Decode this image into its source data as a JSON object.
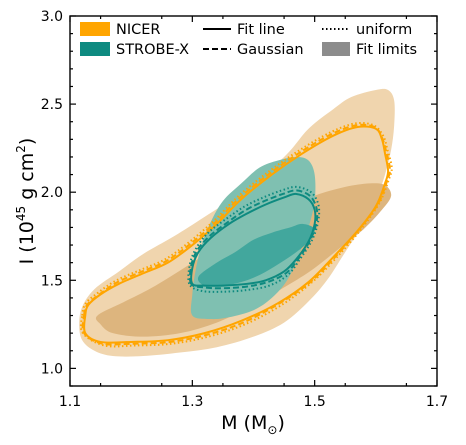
{
  "chart_data": {
    "type": "contour",
    "xlabel_main": "M (M",
    "xlabel_sub": "⊙",
    "xlabel_end": ")",
    "ylabel_main": "I (10",
    "ylabel_sup1": "45",
    "ylabel_mid": " g cm",
    "ylabel_sup2": "2",
    "ylabel_end": ")",
    "xlim": [
      1.1,
      1.7
    ],
    "ylim": [
      0.9,
      3.0
    ],
    "xticks": [
      {
        "value": 1.1,
        "label": "1.1"
      },
      {
        "value": 1.3,
        "label": "1.3"
      },
      {
        "value": 1.5,
        "label": "1.5"
      },
      {
        "value": 1.7,
        "label": "1.7"
      }
    ],
    "yticks": [
      {
        "value": 1.0,
        "label": "1.0"
      },
      {
        "value": 1.5,
        "label": "1.5"
      },
      {
        "value": 2.0,
        "label": "2.0"
      },
      {
        "value": 2.5,
        "label": "2.5"
      },
      {
        "value": 3.0,
        "label": "3.0"
      }
    ],
    "legend": [
      {
        "label": "NICER",
        "kind": "patch",
        "color": "#FFA500"
      },
      {
        "label": "STROBE-X",
        "kind": "patch",
        "color": "#0E8A80"
      },
      {
        "label": "Fit line",
        "kind": "line",
        "dash": "solid"
      },
      {
        "label": "Gaussian",
        "kind": "line",
        "dash": "dashed"
      },
      {
        "label": "uniform",
        "kind": "line",
        "dash": "dotted"
      },
      {
        "label": "Fit limits",
        "kind": "patch",
        "color": "#8c8c8c"
      }
    ],
    "colors": {
      "nicer_region": "#F0D5AE",
      "nicer_inner": "#DDB57E",
      "nicer_line": "#FFA500",
      "strobe_region": "#7FC0B1",
      "strobe_inner": "#42A79D",
      "strobe_line": "#0E8A80"
    },
    "regions": [
      {
        "name": "NICER outer region",
        "color": "#F0D5AE",
        "points": [
          [
            1.115,
            1.25
          ],
          [
            1.12,
            1.35
          ],
          [
            1.14,
            1.45
          ],
          [
            1.18,
            1.55
          ],
          [
            1.22,
            1.65
          ],
          [
            1.27,
            1.75
          ],
          [
            1.32,
            1.86
          ],
          [
            1.38,
            2.0
          ],
          [
            1.45,
            2.2
          ],
          [
            1.49,
            2.36
          ],
          [
            1.53,
            2.47
          ],
          [
            1.56,
            2.54
          ],
          [
            1.6,
            2.58
          ],
          [
            1.62,
            2.58
          ],
          [
            1.63,
            2.52
          ],
          [
            1.63,
            2.38
          ],
          [
            1.625,
            2.24
          ],
          [
            1.615,
            2.1
          ],
          [
            1.6,
            1.95
          ],
          [
            1.58,
            1.82
          ],
          [
            1.55,
            1.66
          ],
          [
            1.52,
            1.5
          ],
          [
            1.49,
            1.38
          ],
          [
            1.45,
            1.26
          ],
          [
            1.4,
            1.18
          ],
          [
            1.34,
            1.12
          ],
          [
            1.28,
            1.09
          ],
          [
            1.22,
            1.07
          ],
          [
            1.17,
            1.07
          ],
          [
            1.14,
            1.1
          ],
          [
            1.12,
            1.16
          ]
        ]
      },
      {
        "name": "NICER inner region",
        "color": "#DDB57E",
        "points": [
          [
            1.145,
            1.3
          ],
          [
            1.19,
            1.38
          ],
          [
            1.24,
            1.47
          ],
          [
            1.3,
            1.6
          ],
          [
            1.35,
            1.72
          ],
          [
            1.4,
            1.82
          ],
          [
            1.45,
            1.9
          ],
          [
            1.5,
            1.98
          ],
          [
            1.55,
            2.03
          ],
          [
            1.59,
            2.05
          ],
          [
            1.615,
            2.04
          ],
          [
            1.625,
            1.98
          ],
          [
            1.61,
            1.9
          ],
          [
            1.58,
            1.79
          ],
          [
            1.54,
            1.68
          ],
          [
            1.5,
            1.57
          ],
          [
            1.46,
            1.48
          ],
          [
            1.4,
            1.36
          ],
          [
            1.34,
            1.26
          ],
          [
            1.28,
            1.2
          ],
          [
            1.22,
            1.18
          ],
          [
            1.17,
            1.2
          ],
          [
            1.15,
            1.25
          ]
        ]
      },
      {
        "name": "STROBE-X outer region",
        "color": "#7FC0B1",
        "points": [
          [
            1.3,
            1.3
          ],
          [
            1.3,
            1.42
          ],
          [
            1.305,
            1.55
          ],
          [
            1.315,
            1.7
          ],
          [
            1.33,
            1.83
          ],
          [
            1.35,
            1.95
          ],
          [
            1.38,
            2.05
          ],
          [
            1.41,
            2.14
          ],
          [
            1.44,
            2.18
          ],
          [
            1.47,
            2.2
          ],
          [
            1.49,
            2.18
          ],
          [
            1.5,
            2.1
          ],
          [
            1.5,
            1.95
          ],
          [
            1.49,
            1.8
          ],
          [
            1.475,
            1.65
          ],
          [
            1.455,
            1.5
          ],
          [
            1.43,
            1.4
          ],
          [
            1.4,
            1.33
          ],
          [
            1.36,
            1.29
          ],
          [
            1.33,
            1.28
          ]
        ]
      },
      {
        "name": "STROBE-X inner region",
        "color": "#42A79D",
        "points": [
          [
            1.31,
            1.52
          ],
          [
            1.34,
            1.6
          ],
          [
            1.37,
            1.66
          ],
          [
            1.4,
            1.73
          ],
          [
            1.43,
            1.77
          ],
          [
            1.46,
            1.8
          ],
          [
            1.48,
            1.82
          ],
          [
            1.5,
            1.79
          ],
          [
            1.49,
            1.72
          ],
          [
            1.47,
            1.66
          ],
          [
            1.44,
            1.59
          ],
          [
            1.41,
            1.53
          ],
          [
            1.38,
            1.49
          ],
          [
            1.35,
            1.47
          ],
          [
            1.32,
            1.47
          ]
        ]
      }
    ],
    "fit_contours": [
      {
        "name": "NICER fit line",
        "color": "#FFA500",
        "dash": "solid",
        "points": [
          [
            1.125,
            1.3
          ],
          [
            1.13,
            1.36
          ],
          [
            1.15,
            1.42
          ],
          [
            1.18,
            1.48
          ],
          [
            1.22,
            1.54
          ],
          [
            1.26,
            1.6
          ],
          [
            1.3,
            1.7
          ],
          [
            1.34,
            1.82
          ],
          [
            1.38,
            1.96
          ],
          [
            1.43,
            2.1
          ],
          [
            1.48,
            2.22
          ],
          [
            1.53,
            2.32
          ],
          [
            1.57,
            2.37
          ],
          [
            1.6,
            2.36
          ],
          [
            1.61,
            2.3
          ],
          [
            1.615,
            2.22
          ],
          [
            1.62,
            2.12
          ],
          [
            1.615,
            2.05
          ],
          [
            1.6,
            1.92
          ],
          [
            1.57,
            1.78
          ],
          [
            1.53,
            1.63
          ],
          [
            1.49,
            1.49
          ],
          [
            1.44,
            1.37
          ],
          [
            1.38,
            1.27
          ],
          [
            1.32,
            1.2
          ],
          [
            1.26,
            1.16
          ],
          [
            1.2,
            1.15
          ],
          [
            1.15,
            1.15
          ],
          [
            1.125,
            1.2
          ]
        ]
      },
      {
        "name": "NICER Gaussian",
        "color": "#FFA500",
        "dash": "dashed",
        "points": [
          [
            1.123,
            1.3
          ],
          [
            1.128,
            1.36
          ],
          [
            1.148,
            1.42
          ],
          [
            1.178,
            1.49
          ],
          [
            1.218,
            1.55
          ],
          [
            1.258,
            1.61
          ],
          [
            1.298,
            1.71
          ],
          [
            1.338,
            1.83
          ],
          [
            1.378,
            1.97
          ],
          [
            1.428,
            2.11
          ],
          [
            1.478,
            2.23
          ],
          [
            1.528,
            2.33
          ],
          [
            1.568,
            2.38
          ],
          [
            1.598,
            2.37
          ],
          [
            1.61,
            2.31
          ],
          [
            1.617,
            2.23
          ],
          [
            1.623,
            2.13
          ],
          [
            1.618,
            2.06
          ],
          [
            1.603,
            1.93
          ],
          [
            1.573,
            1.79
          ],
          [
            1.533,
            1.63
          ],
          [
            1.493,
            1.49
          ],
          [
            1.443,
            1.37
          ],
          [
            1.383,
            1.26
          ],
          [
            1.323,
            1.19
          ],
          [
            1.263,
            1.15
          ],
          [
            1.203,
            1.14
          ],
          [
            1.153,
            1.14
          ],
          [
            1.123,
            1.2
          ]
        ]
      },
      {
        "name": "NICER uniform",
        "color": "#FFA500",
        "dash": "dotted",
        "points": [
          [
            1.12,
            1.3
          ],
          [
            1.126,
            1.37
          ],
          [
            1.146,
            1.43
          ],
          [
            1.176,
            1.5
          ],
          [
            1.216,
            1.56
          ],
          [
            1.256,
            1.62
          ],
          [
            1.296,
            1.72
          ],
          [
            1.336,
            1.84
          ],
          [
            1.376,
            1.98
          ],
          [
            1.426,
            2.12
          ],
          [
            1.476,
            2.24
          ],
          [
            1.526,
            2.34
          ],
          [
            1.566,
            2.39
          ],
          [
            1.596,
            2.38
          ],
          [
            1.612,
            2.32
          ],
          [
            1.619,
            2.24
          ],
          [
            1.626,
            2.14
          ],
          [
            1.621,
            2.07
          ],
          [
            1.606,
            1.94
          ],
          [
            1.576,
            1.79
          ],
          [
            1.536,
            1.63
          ],
          [
            1.496,
            1.49
          ],
          [
            1.446,
            1.36
          ],
          [
            1.386,
            1.25
          ],
          [
            1.326,
            1.18
          ],
          [
            1.266,
            1.14
          ],
          [
            1.206,
            1.13
          ],
          [
            1.156,
            1.13
          ],
          [
            1.121,
            1.2
          ]
        ]
      },
      {
        "name": "STROBE-X fit line",
        "color": "#0E8A80",
        "dash": "solid",
        "points": [
          [
            1.3,
            1.48
          ],
          [
            1.3,
            1.57
          ],
          [
            1.31,
            1.66
          ],
          [
            1.33,
            1.74
          ],
          [
            1.36,
            1.82
          ],
          [
            1.39,
            1.88
          ],
          [
            1.42,
            1.93
          ],
          [
            1.45,
            1.97
          ],
          [
            1.47,
            1.99
          ],
          [
            1.49,
            1.96
          ],
          [
            1.5,
            1.9
          ],
          [
            1.5,
            1.82
          ],
          [
            1.49,
            1.72
          ],
          [
            1.47,
            1.62
          ],
          [
            1.45,
            1.55
          ],
          [
            1.42,
            1.5
          ],
          [
            1.39,
            1.48
          ],
          [
            1.35,
            1.47
          ],
          [
            1.32,
            1.47
          ]
        ]
      },
      {
        "name": "STROBE-X Gaussian",
        "color": "#0E8A80",
        "dash": "dashed",
        "points": [
          [
            1.298,
            1.48
          ],
          [
            1.298,
            1.58
          ],
          [
            1.308,
            1.67
          ],
          [
            1.328,
            1.75
          ],
          [
            1.358,
            1.83
          ],
          [
            1.388,
            1.9
          ],
          [
            1.418,
            1.95
          ],
          [
            1.448,
            1.99
          ],
          [
            1.47,
            2.01
          ],
          [
            1.492,
            1.98
          ],
          [
            1.503,
            1.91
          ],
          [
            1.503,
            1.83
          ],
          [
            1.493,
            1.73
          ],
          [
            1.473,
            1.62
          ],
          [
            1.453,
            1.54
          ],
          [
            1.423,
            1.49
          ],
          [
            1.39,
            1.465
          ],
          [
            1.35,
            1.455
          ],
          [
            1.318,
            1.46
          ]
        ]
      },
      {
        "name": "STROBE-X uniform",
        "color": "#0E8A80",
        "dash": "dotted",
        "points": [
          [
            1.295,
            1.48
          ],
          [
            1.296,
            1.59
          ],
          [
            1.306,
            1.68
          ],
          [
            1.326,
            1.77
          ],
          [
            1.356,
            1.85
          ],
          [
            1.386,
            1.92
          ],
          [
            1.416,
            1.97
          ],
          [
            1.446,
            2.01
          ],
          [
            1.47,
            2.03
          ],
          [
            1.494,
            2.0
          ],
          [
            1.506,
            1.93
          ],
          [
            1.506,
            1.84
          ],
          [
            1.496,
            1.73
          ],
          [
            1.476,
            1.62
          ],
          [
            1.456,
            1.53
          ],
          [
            1.426,
            1.47
          ],
          [
            1.39,
            1.445
          ],
          [
            1.35,
            1.435
          ],
          [
            1.315,
            1.44
          ]
        ]
      }
    ]
  }
}
